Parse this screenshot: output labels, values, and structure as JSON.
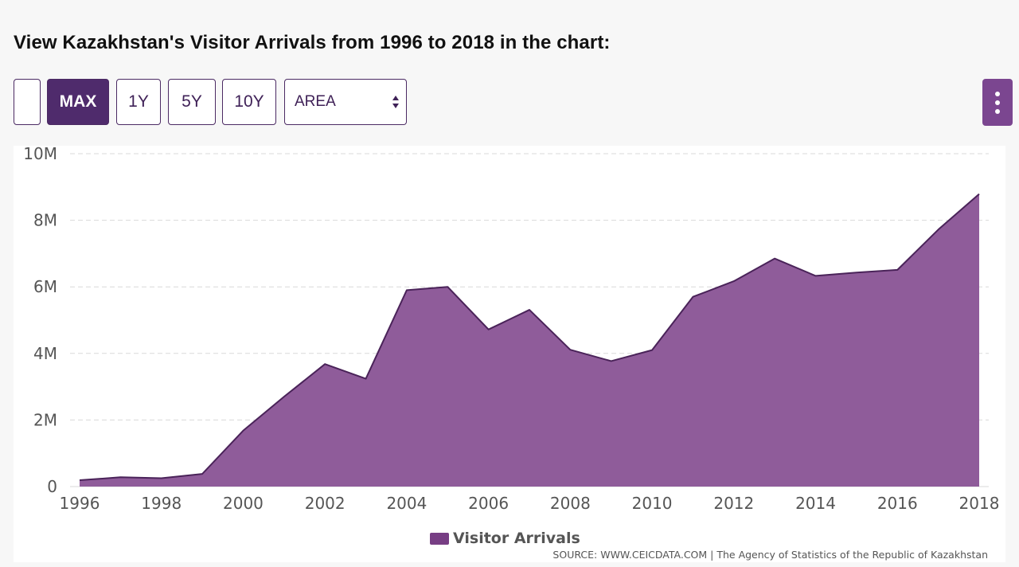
{
  "header": {
    "title": "View Kazakhstan's Visitor Arrivals from 1996 to 2018 in the chart:"
  },
  "toolbar": {
    "range_buttons": [
      "",
      "MAX",
      "1Y",
      "5Y",
      "10Y"
    ],
    "active_range": "MAX",
    "chart_type_select": "AREA",
    "menu_icon": "kebab-menu-icon"
  },
  "colors": {
    "accent": "#4f2b6c",
    "area_fill": "#8f5c9a",
    "area_line": "#4a2359",
    "menu_button": "#7b4690"
  },
  "chart_data": {
    "type": "area",
    "x": [
      1996,
      1997,
      1998,
      1999,
      2000,
      2001,
      2002,
      2003,
      2004,
      2005,
      2006,
      2007,
      2008,
      2009,
      2010,
      2011,
      2012,
      2013,
      2014,
      2015,
      2016,
      2017,
      2018
    ],
    "series": [
      {
        "name": "Visitor Arrivals",
        "values": [
          190000,
          280000,
          250000,
          380000,
          1680000,
          2700000,
          3680000,
          3240000,
          5900000,
          6000000,
          4720000,
          5310000,
          4110000,
          3770000,
          4100000,
          5700000,
          6170000,
          6850000,
          6330000,
          6430000,
          6510000,
          7720000,
          8790000
        ]
      }
    ],
    "x_ticks": [
      "1996",
      "1998",
      "2000",
      "2002",
      "2004",
      "2006",
      "2008",
      "2010",
      "2012",
      "2014",
      "2016",
      "2018"
    ],
    "y_ticks": [
      {
        "value": 0,
        "label": "0"
      },
      {
        "value": 2000000,
        "label": "2M"
      },
      {
        "value": 4000000,
        "label": "4M"
      },
      {
        "value": 6000000,
        "label": "6M"
      },
      {
        "value": 8000000,
        "label": "8M"
      },
      {
        "value": 10000000,
        "label": "10M"
      }
    ],
    "ylim": [
      0,
      10000000
    ],
    "xlim": [
      1996,
      2018
    ],
    "grid": "horizontal-dashed",
    "legend_position": "bottom-center",
    "legend": [
      "Visitor Arrivals"
    ],
    "source": "SOURCE: WWW.CEICDATA.COM | The Agency of Statistics of the Republic of Kazakhstan"
  }
}
